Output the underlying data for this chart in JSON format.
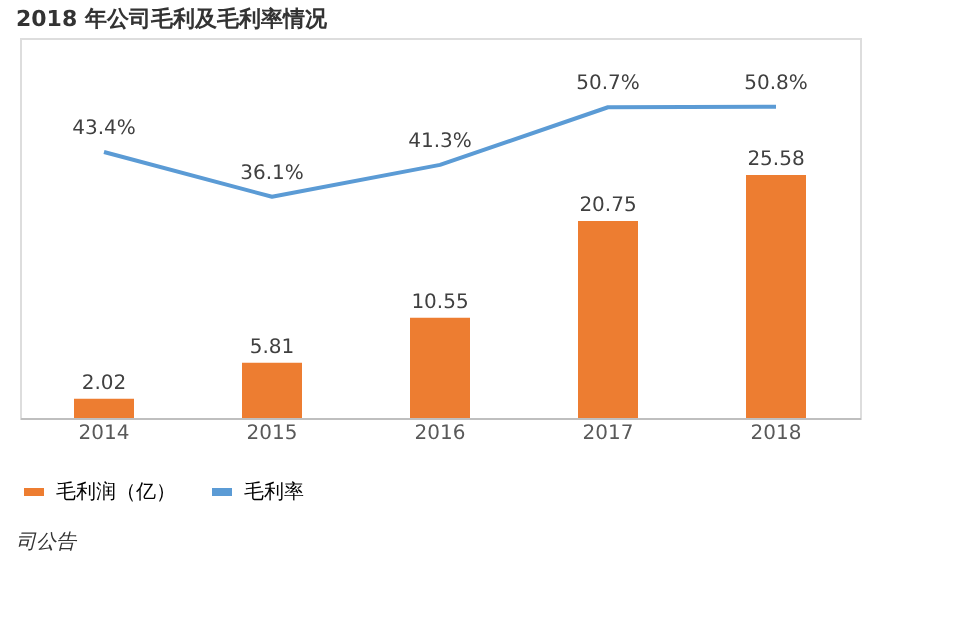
{
  "chart_data": {
    "type": "bar",
    "title": "2018 年公司毛利及毛利率情况",
    "categories": [
      "2014",
      "2015",
      "2016",
      "2017",
      "2018"
    ],
    "series": [
      {
        "name": "毛利润（亿）",
        "color": "#ed7d31",
        "values": [
          2.02,
          5.81,
          10.55,
          20.75,
          25.58
        ]
      },
      {
        "name": "毛利率",
        "type": "line",
        "axis": "y2",
        "color": "#5b9bd5",
        "values": [
          43.4,
          36.1,
          41.3,
          50.7,
          50.8
        ],
        "value_labels": [
          "43.4%",
          "36.1%",
          "41.3%",
          "50.7%",
          "50.8%"
        ]
      }
    ],
    "data_labels": true,
    "ylim": [
      0,
      40
    ],
    "y2lim": [
      0,
      62
    ],
    "tick_labels": "x",
    "grid": false,
    "legend": "bottom",
    "marker": "none",
    "annotations": [
      "司公告"
    ]
  }
}
